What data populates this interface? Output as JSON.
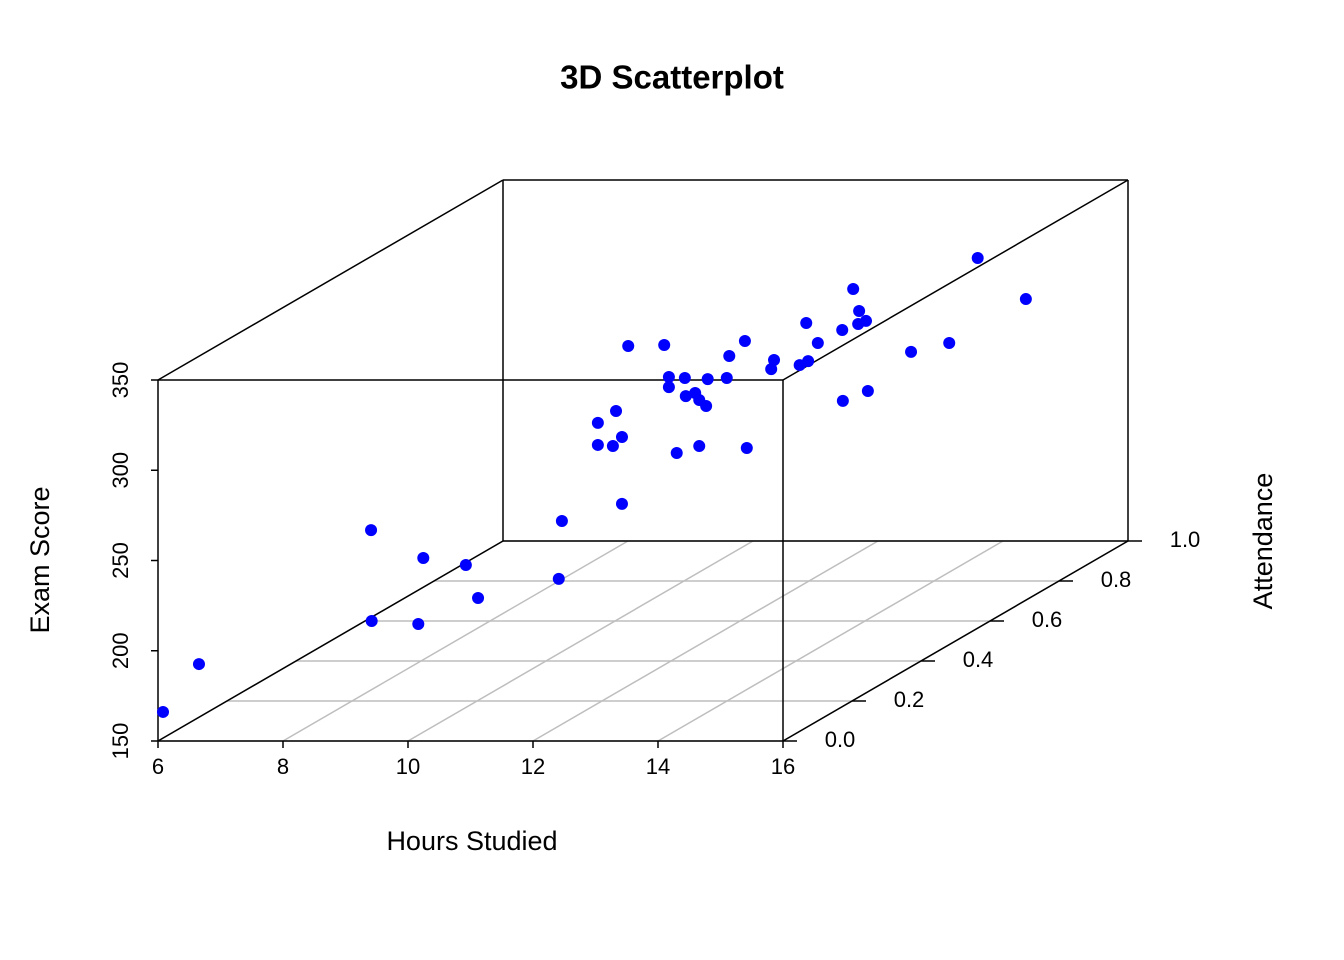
{
  "chart_data": {
    "type": "scatter3d",
    "title": "3D Scatterplot",
    "xlabel": "Hours Studied",
    "ylabel": "Attendance",
    "zlabel": "Exam Score",
    "color": "blue",
    "grid": true,
    "xlim": [
      6,
      16
    ],
    "xticks": [
      6,
      8,
      10,
      12,
      14,
      16
    ],
    "ylim": [
      0,
      1
    ],
    "yticks": [
      {
        "value": 0,
        "label": "0.0"
      },
      0.2,
      0.4,
      0.6,
      0.8,
      {
        "value": 1,
        "label": "1.0"
      }
    ],
    "zlim": [
      150,
      350
    ],
    "zticks": [
      150,
      200,
      250,
      300,
      350
    ],
    "x": [
      6.08,
      6.49,
      8.36,
      8.37,
      8.84,
      8.92,
      9.38,
      9.52,
      10.37,
      10.42,
      10.83,
      10.83,
      10.96,
      11.01,
      11.05,
      11.05,
      11.15,
      11.56,
      11.58,
      11.58,
      11.65,
      11.78,
      11.74,
      11.89,
      11.9,
      11.9,
      12.01,
      11.98,
      12.23,
      12.27,
      12.41,
      12.44,
      12.72,
      12.71,
      13.01,
      13.06,
      13.09,
      13.19,
      13.47,
      13.48,
      13.59,
      13.63,
      13.67,
      13.74,
      13.77,
      14.24,
      14.63,
      14.92,
      15.47
    ],
    "y": [
      0,
      0.03,
      0.19,
      0.19,
      0.24,
      0.24,
      0.28,
      0.29,
      0.37,
      0.37,
      0.4,
      0.4,
      0.42,
      0.42,
      0.43,
      0.43,
      0.43,
      0.46,
      0.47,
      0.47,
      0.48,
      0.48,
      0.49,
      0.49,
      0.5,
      0.5,
      0.5,
      0.51,
      0.52,
      0.52,
      0.54,
      0.54,
      0.56,
      0.57,
      0.59,
      0.6,
      0.6,
      0.61,
      0.63,
      0.63,
      0.64,
      0.65,
      0.64,
      0.65,
      0.65,
      0.69,
      0.73,
      0.76,
      0.8
    ],
    "z": [
      166.1,
      189.3,
      245.8,
      195.4,
      188.2,
      224.8,
      216.5,
      197.1,
      198.8,
      230.9,
      281.9,
      269.7,
      266.9,
      286.3,
      270.8,
      233.7,
      321.2,
      318.4,
      299.6,
      294.0,
      256.4,
      297.9,
      286.8,
      288.5,
      258.0,
      283.5,
      280.2,
      294.0,
      293.5,
      305.7,
      311.8,
      252.5,
      294.0,
      297.9,
      292.9,
      315.1,
      294.0,
      302.9,
      307.9,
      268.6,
      329.5,
      316.2,
      310.1,
      310.7,
      271.9,
      289.1,
      289.6,
      333.4,
      306.2
    ]
  }
}
